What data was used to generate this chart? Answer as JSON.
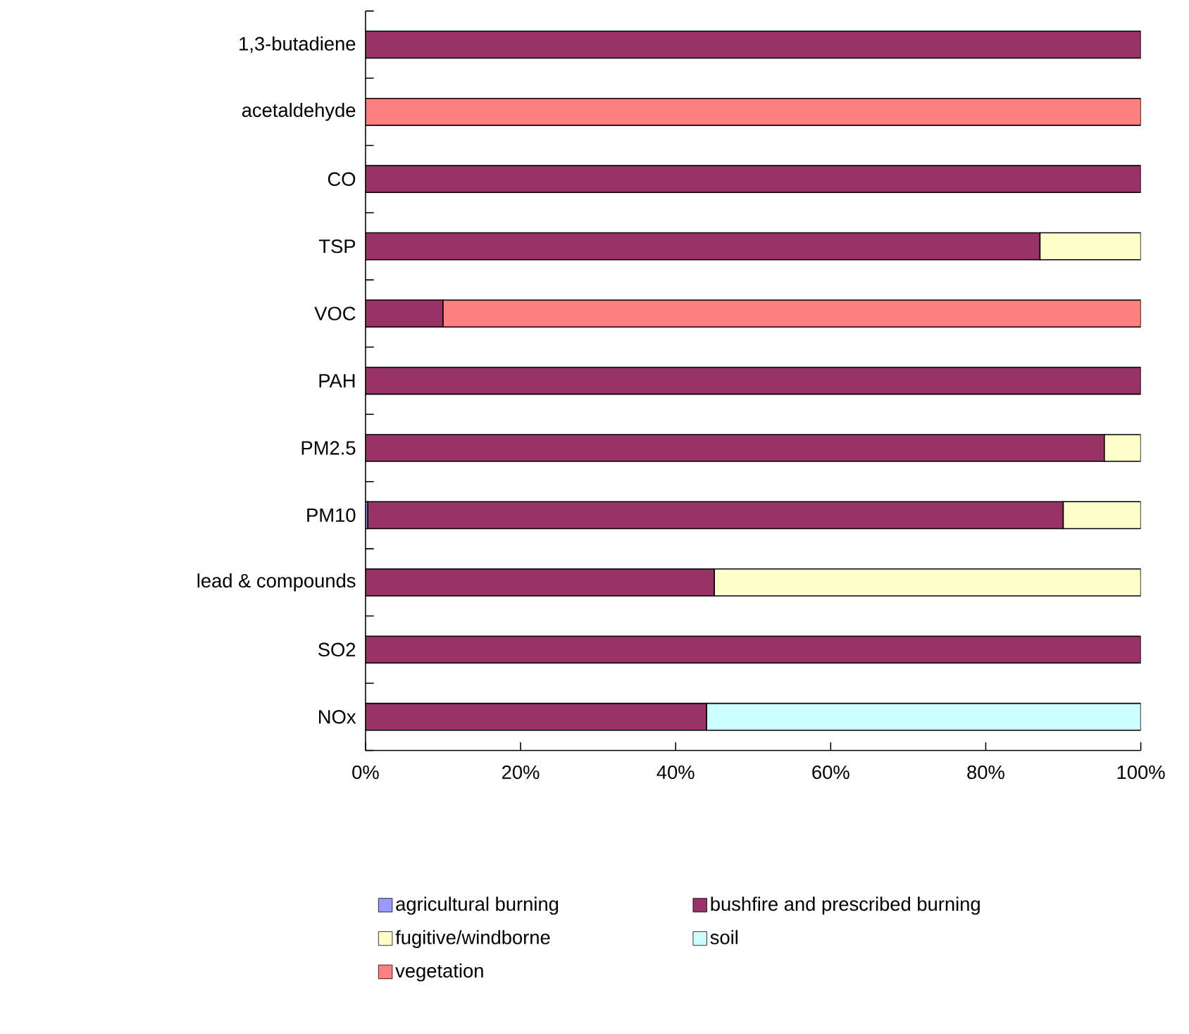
{
  "chart_data": {
    "type": "bar",
    "orientation": "horizontal",
    "stacked": true,
    "categories": [
      "1,3-butadiene",
      "acetaldehyde",
      "CO",
      "TSP",
      "VOC",
      "PAH",
      "PM2.5",
      "PM10",
      "lead & compounds",
      "SO2",
      "NOx"
    ],
    "series": [
      {
        "name": "agricultural burning",
        "color": "#9999ff",
        "values": [
          null,
          null,
          null,
          null,
          null,
          null,
          null,
          0.3,
          null,
          null,
          null
        ]
      },
      {
        "name": "bushfire and prescribed burning",
        "color": "#993366",
        "values": [
          100,
          null,
          100,
          87,
          10,
          100,
          95.3,
          89.7,
          45,
          100,
          44
        ]
      },
      {
        "name": "fugitive/windborne",
        "color": "#ffffcc",
        "values": [
          null,
          null,
          null,
          13,
          null,
          null,
          4.7,
          10,
          55,
          null,
          null
        ]
      },
      {
        "name": "soil",
        "color": "#ccffff",
        "values": [
          null,
          null,
          null,
          null,
          null,
          null,
          null,
          null,
          null,
          null,
          56
        ]
      },
      {
        "name": "vegetation",
        "color": "#ff8080",
        "values": [
          null,
          100,
          null,
          null,
          90,
          null,
          null,
          null,
          null,
          null,
          null
        ]
      }
    ],
    "xlim": [
      0,
      100
    ],
    "xticks": [
      {
        "value": 0,
        "label": "0%"
      },
      {
        "value": 20,
        "label": "20%"
      },
      {
        "value": 40,
        "label": "40%"
      },
      {
        "value": 60,
        "label": "60%"
      },
      {
        "value": 80,
        "label": "80%"
      },
      {
        "value": 100,
        "label": "100%"
      }
    ],
    "legend": "bottom",
    "grid": false
  }
}
